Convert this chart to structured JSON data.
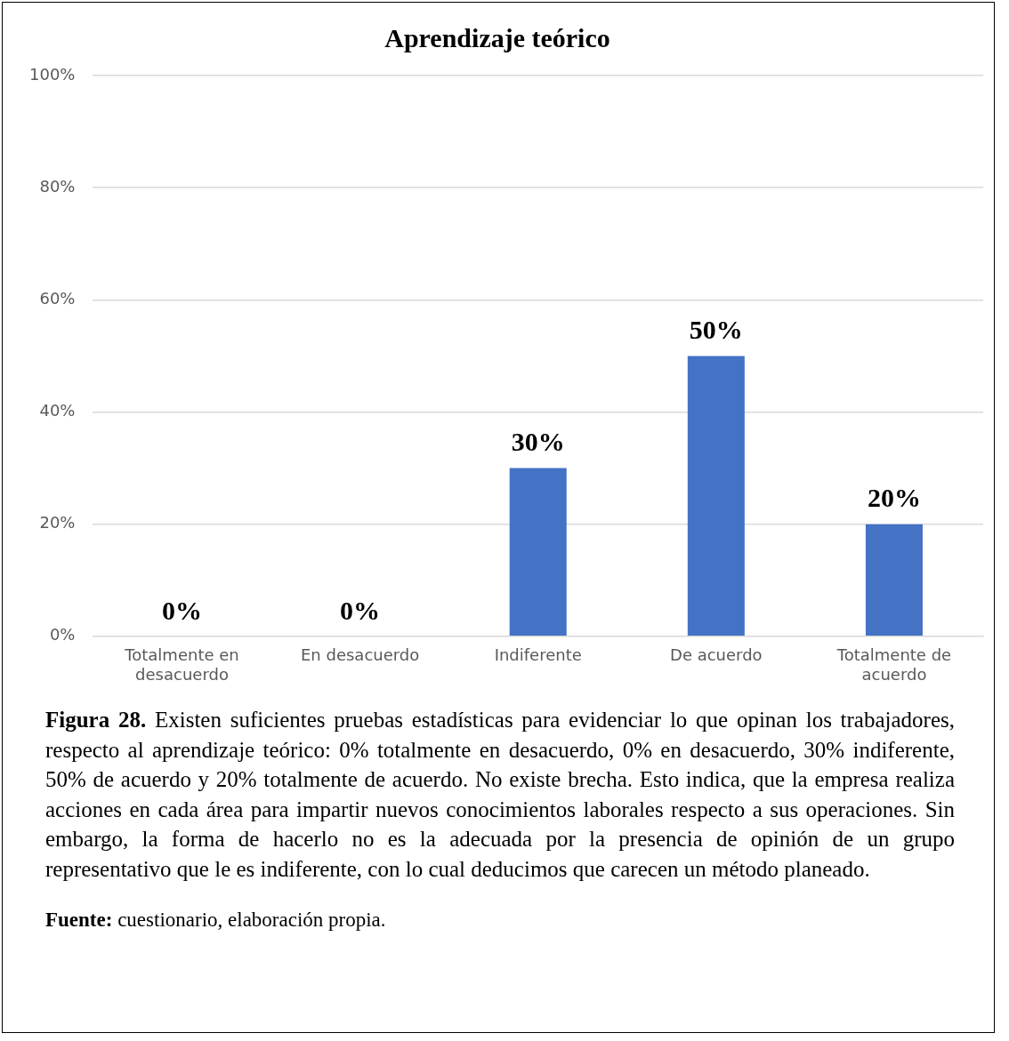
{
  "chart_data": {
    "type": "bar",
    "title": "Aprendizaje teórico",
    "categories": [
      "Totalmente en desacuerdo",
      "En desacuerdo",
      "Indiferente",
      "De acuerdo",
      "Totalmente de acuerdo"
    ],
    "values": [
      0,
      0,
      30,
      50,
      20
    ],
    "color": "#4472c4",
    "value_labels": [
      "0%",
      "0%",
      "30%",
      "50%",
      "20%"
    ],
    "ylim": [
      0,
      100
    ],
    "yticks": [
      {
        "value": 0,
        "label": "0%"
      },
      {
        "value": 20,
        "label": "20%"
      },
      {
        "value": 40,
        "label": "40%"
      },
      {
        "value": 60,
        "label": "60%"
      },
      {
        "value": 80,
        "label": "80%"
      },
      {
        "value": 100,
        "label": "100%"
      }
    ],
    "grid": "y",
    "legend": false,
    "annotations": [
      "Figura 28. Existen suficientes pruebas estadísticas para evidenciar lo que opinan los trabajadores, respecto al aprendizaje teórico: 0% totalmente en desacuerdo, 0% en desacuerdo, 30% indiferente, 50% de acuerdo y 20% totalmente de acuerdo. No existe brecha. Esto indica, que la empresa realiza acciones en cada área para impartir nuevos conocimientos laborales respecto a sus operaciones. Sin embargo, la forma de hacerlo no es la adecuada por la presencia de opinión de un grupo representativo que le es indiferente, con lo cual deducimos que carecen un método planeado.",
      "Fuente: cuestionario, elaboración propia."
    ]
  }
}
